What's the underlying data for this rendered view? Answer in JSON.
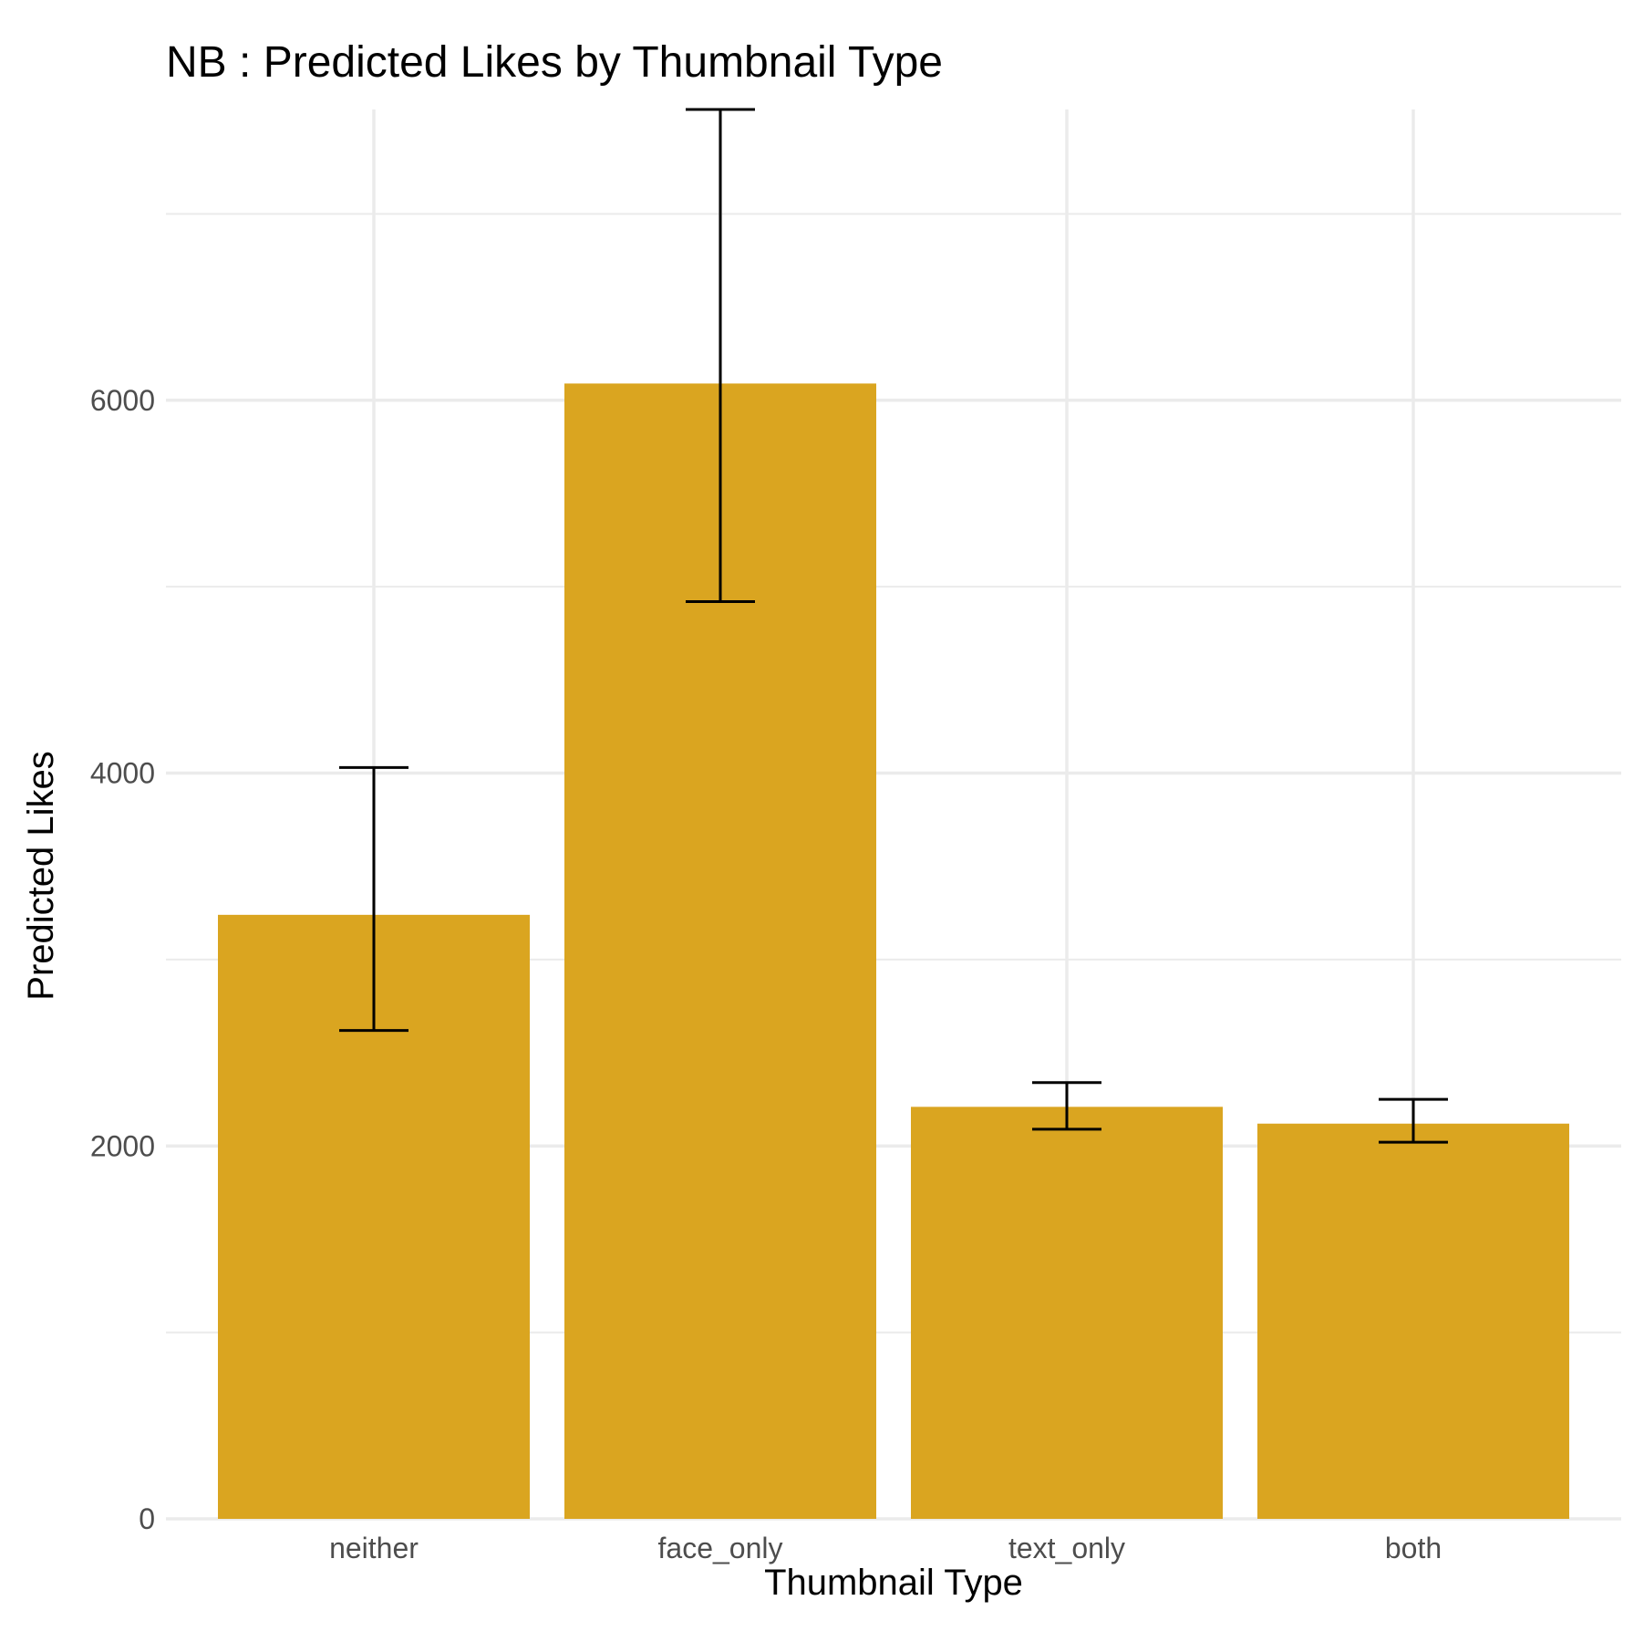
{
  "chart_data": {
    "type": "bar",
    "title": "NB : Predicted Likes by Thumbnail Type",
    "xlabel": "Thumbnail Type",
    "ylabel": "Predicted Likes",
    "categories": [
      "neither",
      "face_only",
      "text_only",
      "both"
    ],
    "values": [
      3240,
      6090,
      2210,
      2120
    ],
    "error_low": [
      2620,
      4920,
      2090,
      2020
    ],
    "error_high": [
      4030,
      7560,
      2340,
      2250
    ],
    "ylim": [
      0,
      7560
    ],
    "yticks": [
      0,
      2000,
      4000,
      6000
    ],
    "ytick_labels": [
      "0",
      "2000",
      "4000",
      "6000"
    ],
    "yminor": [
      1000,
      3000,
      5000,
      7000
    ],
    "grid": true,
    "legend": "none",
    "bar_color": "#DAA520"
  }
}
